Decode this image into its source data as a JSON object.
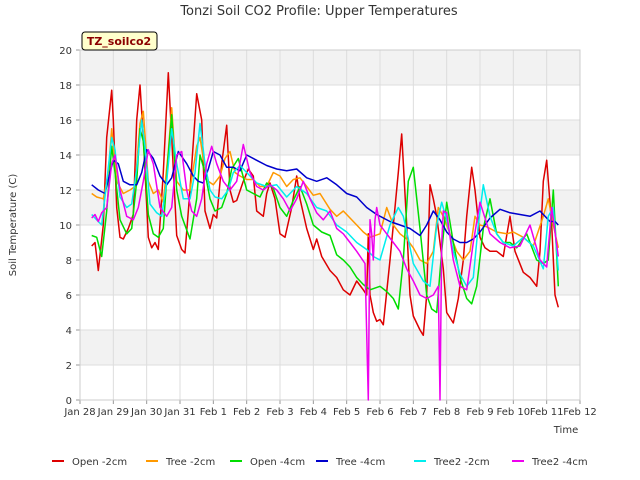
{
  "chart_data": {
    "type": "line",
    "title": "Tonzi Soil CO2 Profile: Upper Temperatures",
    "xlabel": "Time",
    "ylabel": "Soil Temperature (C)",
    "ylim": [
      0,
      20
    ],
    "yticks": [
      0,
      2,
      4,
      6,
      8,
      10,
      12,
      14,
      16,
      18,
      20
    ],
    "xlim": [
      0,
      15
    ],
    "xticks": [
      {
        "x": 0,
        "label": "Jan 28"
      },
      {
        "x": 1,
        "label": "Jan 29"
      },
      {
        "x": 2,
        "label": "Jan 30"
      },
      {
        "x": 3,
        "label": "Jan 31"
      },
      {
        "x": 4,
        "label": "Feb 1"
      },
      {
        "x": 5,
        "label": "Feb 2"
      },
      {
        "x": 6,
        "label": "Feb 3"
      },
      {
        "x": 7,
        "label": "Feb 4"
      },
      {
        "x": 8,
        "label": "Feb 5"
      },
      {
        "x": 9,
        "label": "Feb 6"
      },
      {
        "x": 10,
        "label": "Feb 7"
      },
      {
        "x": 11,
        "label": "Feb 8"
      },
      {
        "x": 12,
        "label": "Feb 9"
      },
      {
        "x": 13,
        "label": "Feb 10"
      },
      {
        "x": 14,
        "label": "Feb 11"
      },
      {
        "x": 15,
        "label": "Feb 12"
      }
    ],
    "grid": true,
    "site_label": "TZ_soilco2",
    "legend_position": "bottom",
    "series": [
      {
        "name": "Open -2cm",
        "color": "#dd0000",
        "x": [
          0.35,
          0.45,
          0.55,
          0.7,
          0.8,
          0.95,
          1.0,
          1.1,
          1.2,
          1.3,
          1.45,
          1.6,
          1.7,
          1.8,
          1.9,
          2.05,
          2.15,
          2.25,
          2.35,
          2.5,
          2.65,
          2.75,
          2.9,
          3.05,
          3.15,
          3.3,
          3.5,
          3.65,
          3.75,
          3.9,
          4.0,
          4.1,
          4.25,
          4.4,
          4.5,
          4.6,
          4.7,
          4.9,
          5.05,
          5.2,
          5.3,
          5.5,
          5.6,
          5.7,
          5.85,
          6.0,
          6.15,
          6.35,
          6.5,
          6.6,
          6.8,
          7.0,
          7.1,
          7.25,
          7.5,
          7.7,
          7.9,
          8.1,
          8.3,
          8.5,
          8.6,
          8.65,
          8.7,
          8.75,
          8.8,
          8.9,
          9.0,
          9.1,
          9.3,
          9.55,
          9.65,
          9.8,
          9.9,
          10.0,
          10.2,
          10.3,
          10.4,
          10.5,
          10.6,
          10.7,
          10.8,
          10.9,
          11.0,
          11.2,
          11.35,
          11.5,
          11.6,
          11.75,
          11.85,
          12.0,
          12.15,
          12.3,
          12.5,
          12.7,
          12.8,
          12.9,
          13.05,
          13.3,
          13.5,
          13.7,
          13.8,
          13.9,
          14.0,
          14.15,
          14.25,
          14.35
        ],
        "y": [
          8.8,
          9.0,
          7.4,
          10.0,
          15.0,
          17.7,
          16.0,
          11.0,
          9.3,
          9.2,
          9.8,
          10.6,
          16.0,
          18.0,
          15.0,
          9.3,
          8.7,
          9.0,
          8.6,
          13.0,
          18.7,
          15.0,
          9.4,
          8.6,
          8.4,
          12.0,
          17.5,
          16.0,
          10.8,
          9.8,
          10.6,
          10.4,
          13.5,
          15.7,
          12.0,
          11.3,
          11.4,
          12.5,
          13.2,
          12.8,
          10.8,
          10.5,
          11.8,
          12.4,
          11.5,
          9.5,
          9.3,
          11.0,
          12.8,
          11.5,
          9.8,
          8.6,
          9.2,
          8.2,
          7.4,
          7.0,
          6.3,
          6.0,
          6.8,
          6.3,
          6.0,
          9.5,
          6.0,
          5.5,
          5.0,
          4.5,
          4.6,
          4.3,
          8.0,
          13.0,
          15.2,
          10.0,
          6.0,
          4.8,
          4.0,
          3.7,
          6.0,
          12.3,
          11.5,
          10.5,
          9.0,
          7.5,
          5.0,
          4.4,
          5.8,
          8.0,
          10.5,
          13.3,
          12.0,
          9.3,
          8.7,
          8.5,
          8.5,
          8.2,
          9.4,
          10.5,
          8.5,
          7.3,
          7.0,
          6.5,
          8.5,
          12.5,
          13.7,
          10.0,
          6.0,
          5.3
        ]
      },
      {
        "name": "Tree -2cm",
        "color": "#ff9900",
        "x": [
          0.35,
          0.5,
          0.7,
          0.85,
          0.95,
          1.1,
          1.3,
          1.5,
          1.65,
          1.8,
          1.9,
          2.05,
          2.2,
          2.35,
          2.5,
          2.65,
          2.75,
          2.9,
          3.1,
          3.3,
          3.5,
          3.6,
          3.7,
          3.85,
          4.0,
          4.2,
          4.35,
          4.5,
          4.65,
          4.8,
          5.0,
          5.2,
          5.4,
          5.6,
          5.8,
          6.0,
          6.2,
          6.4,
          6.6,
          6.8,
          7.0,
          7.2,
          7.5,
          7.7,
          7.9,
          8.1,
          8.3,
          8.5,
          8.7,
          9.0,
          9.2,
          9.4,
          9.6,
          9.8,
          10.0,
          10.2,
          10.4,
          10.6,
          10.75,
          10.9,
          11.1,
          11.3,
          11.5,
          11.7,
          11.85,
          12.0,
          12.2,
          12.5,
          12.8,
          13.0,
          13.3,
          13.6,
          13.9,
          14.05,
          14.2,
          14.35
        ],
        "y": [
          11.8,
          11.6,
          11.5,
          13.0,
          15.5,
          12.5,
          11.8,
          12.0,
          12.2,
          15.8,
          16.5,
          12.5,
          11.8,
          12.0,
          11.3,
          14.2,
          16.7,
          12.5,
          12.0,
          12.0,
          14.5,
          15.0,
          13.8,
          12.5,
          12.3,
          12.8,
          13.8,
          14.2,
          13.0,
          12.8,
          12.6,
          12.6,
          12.2,
          12.2,
          13.0,
          12.8,
          12.2,
          12.6,
          12.7,
          12.2,
          11.7,
          11.8,
          10.9,
          10.5,
          10.8,
          10.4,
          10.0,
          9.6,
          9.3,
          9.5,
          11.0,
          10.0,
          9.5,
          9.2,
          8.7,
          8.0,
          7.8,
          8.5,
          11.0,
          10.5,
          9.5,
          8.5,
          8.0,
          8.5,
          10.5,
          10.0,
          9.9,
          9.6,
          9.5,
          9.6,
          9.3,
          8.8,
          10.5,
          11.5,
          10.0,
          8.7
        ]
      },
      {
        "name": "Open -4cm",
        "color": "#00dd00",
        "x": [
          0.35,
          0.5,
          0.65,
          0.8,
          0.95,
          1.05,
          1.2,
          1.4,
          1.55,
          1.7,
          1.8,
          1.9,
          2.05,
          2.2,
          2.35,
          2.5,
          2.65,
          2.75,
          2.9,
          3.05,
          3.3,
          3.5,
          3.6,
          3.75,
          3.9,
          4.05,
          4.25,
          4.4,
          4.55,
          4.75,
          5.0,
          5.2,
          5.4,
          5.6,
          5.8,
          6.0,
          6.2,
          6.4,
          6.6,
          6.8,
          7.0,
          7.25,
          7.5,
          7.7,
          7.9,
          8.1,
          8.3,
          8.5,
          8.7,
          9.0,
          9.2,
          9.4,
          9.55,
          9.7,
          9.85,
          10.0,
          10.2,
          10.4,
          10.55,
          10.7,
          10.85,
          11.0,
          11.2,
          11.4,
          11.6,
          11.75,
          11.9,
          12.1,
          12.3,
          12.5,
          12.7,
          12.9,
          13.1,
          13.4,
          13.7,
          13.9,
          14.05,
          14.2,
          14.35
        ],
        "y": [
          9.4,
          9.3,
          8.2,
          10.8,
          14.5,
          13.0,
          10.3,
          9.5,
          9.8,
          12.5,
          15.5,
          14.8,
          10.6,
          9.5,
          9.3,
          9.8,
          14.0,
          16.3,
          12.0,
          10.5,
          9.2,
          11.5,
          14.0,
          13.0,
          11.5,
          10.8,
          11.0,
          11.8,
          13.2,
          13.8,
          12.0,
          11.8,
          11.6,
          12.4,
          12.1,
          11.0,
          10.5,
          11.4,
          12.2,
          11.2,
          10.0,
          9.6,
          9.4,
          8.3,
          8.0,
          7.6,
          7.0,
          6.6,
          6.3,
          6.5,
          6.2,
          5.8,
          5.2,
          8.0,
          12.5,
          13.3,
          9.8,
          6.0,
          5.2,
          5.0,
          8.5,
          11.3,
          9.0,
          7.0,
          5.8,
          5.5,
          6.5,
          9.8,
          11.5,
          9.5,
          9.0,
          9.0,
          8.7,
          9.5,
          8.0,
          7.8,
          8.0,
          12.0,
          6.5
        ]
      },
      {
        "name": "Tree -4cm",
        "color": "#0000cc",
        "x": [
          0.35,
          0.55,
          0.75,
          0.9,
          1.0,
          1.15,
          1.3,
          1.5,
          1.7,
          1.85,
          2.0,
          2.2,
          2.4,
          2.6,
          2.75,
          2.95,
          3.2,
          3.4,
          3.55,
          3.7,
          3.85,
          4.0,
          4.2,
          4.4,
          4.6,
          4.8,
          5.0,
          5.3,
          5.6,
          5.9,
          6.2,
          6.5,
          6.8,
          7.1,
          7.4,
          7.7,
          8.0,
          8.3,
          8.6,
          8.9,
          9.1,
          9.3,
          9.6,
          9.9,
          10.2,
          10.4,
          10.6,
          10.8,
          11.0,
          11.2,
          11.4,
          11.6,
          11.8,
          12.0,
          12.3,
          12.6,
          12.9,
          13.2,
          13.5,
          13.8,
          14.1,
          14.25,
          14.35
        ],
        "y": [
          12.3,
          12.0,
          11.8,
          13.0,
          13.7,
          13.5,
          12.5,
          12.3,
          12.3,
          13.0,
          14.3,
          13.8,
          12.8,
          12.3,
          12.7,
          14.2,
          13.5,
          12.8,
          12.5,
          12.4,
          13.2,
          14.2,
          14.0,
          13.3,
          13.3,
          13.1,
          14.0,
          13.7,
          13.4,
          13.2,
          13.1,
          13.2,
          12.7,
          12.5,
          12.7,
          12.3,
          11.8,
          11.6,
          11.0,
          10.6,
          10.4,
          10.2,
          10.0,
          9.8,
          9.4,
          10.0,
          10.8,
          10.3,
          9.6,
          9.2,
          9.0,
          9.0,
          9.2,
          9.6,
          10.4,
          10.9,
          10.7,
          10.6,
          10.5,
          10.8,
          10.2,
          10.2,
          10.0
        ]
      },
      {
        "name": "Tree2 -2cm",
        "color": "#00eeee",
        "x": [
          0.35,
          0.5,
          0.65,
          0.8,
          0.95,
          1.05,
          1.2,
          1.4,
          1.55,
          1.7,
          1.85,
          1.95,
          2.1,
          2.3,
          2.45,
          2.6,
          2.75,
          2.9,
          3.1,
          3.3,
          3.45,
          3.6,
          3.75,
          3.9,
          4.05,
          4.25,
          4.45,
          4.6,
          4.8,
          5.0,
          5.3,
          5.6,
          5.9,
          6.2,
          6.5,
          6.8,
          7.1,
          7.4,
          7.7,
          8.0,
          8.3,
          8.6,
          8.8,
          9.0,
          9.3,
          9.55,
          9.7,
          9.85,
          10.0,
          10.3,
          10.5,
          10.7,
          10.85,
          11.0,
          11.2,
          11.4,
          11.6,
          11.8,
          11.95,
          12.1,
          12.3,
          12.5,
          12.7,
          13.0,
          13.3,
          13.6,
          13.9,
          14.05,
          14.2,
          14.35
        ],
        "y": [
          10.6,
          10.3,
          10.0,
          12.5,
          15.0,
          14.3,
          11.6,
          11.0,
          11.2,
          13.2,
          16.0,
          14.5,
          11.2,
          10.7,
          10.5,
          12.5,
          15.5,
          13.5,
          11.5,
          11.5,
          13.0,
          15.8,
          13.5,
          12.0,
          11.6,
          11.5,
          12.0,
          13.0,
          13.4,
          13.0,
          12.4,
          12.2,
          12.3,
          11.6,
          12.2,
          11.8,
          11.0,
          10.8,
          10.0,
          9.6,
          9.0,
          8.6,
          8.2,
          8.0,
          10.0,
          11.0,
          10.5,
          9.2,
          7.8,
          6.8,
          6.5,
          10.0,
          11.3,
          10.3,
          8.5,
          7.2,
          6.5,
          7.0,
          10.0,
          12.3,
          10.5,
          9.5,
          9.0,
          8.8,
          9.3,
          8.8,
          7.5,
          10.5,
          11.0,
          7.4
        ]
      },
      {
        "name": "Tree2 -4cm",
        "color": "#ee00ee",
        "x": [
          0.35,
          0.45,
          0.55,
          0.65,
          0.8,
          0.95,
          1.05,
          1.2,
          1.4,
          1.6,
          1.75,
          1.9,
          2.05,
          2.2,
          2.4,
          2.6,
          2.75,
          2.9,
          3.05,
          3.2,
          3.35,
          3.5,
          3.65,
          3.8,
          3.95,
          4.1,
          4.3,
          4.5,
          4.7,
          4.9,
          5.1,
          5.3,
          5.5,
          5.7,
          5.9,
          6.1,
          6.3,
          6.5,
          6.7,
          6.9,
          7.1,
          7.3,
          7.5,
          7.7,
          7.9,
          8.1,
          8.3,
          8.55,
          8.65,
          8.7,
          8.75,
          8.8,
          8.85,
          8.9,
          9.0,
          9.2,
          9.4,
          9.6,
          9.8,
          10.0,
          10.2,
          10.4,
          10.6,
          10.75,
          10.8,
          10.85,
          10.9,
          11.0,
          11.2,
          11.4,
          11.6,
          11.8,
          12.0,
          12.3,
          12.6,
          12.9,
          13.2,
          13.5,
          13.8,
          14.0,
          14.15,
          14.35
        ],
        "y": [
          10.4,
          10.6,
          10.2,
          10.7,
          11.0,
          13.5,
          14.0,
          12.0,
          10.5,
          10.3,
          11.0,
          12.5,
          14.3,
          13.5,
          11.0,
          10.5,
          11.0,
          14.0,
          14.2,
          12.0,
          10.8,
          10.5,
          11.5,
          13.5,
          14.5,
          13.5,
          12.5,
          12.0,
          12.5,
          14.6,
          13.0,
          12.2,
          12.0,
          12.3,
          12.0,
          11.5,
          10.8,
          11.5,
          12.5,
          11.5,
          10.7,
          10.3,
          10.8,
          9.8,
          9.5,
          9.0,
          8.5,
          7.8,
          0.0,
          10.3,
          9.5,
          8.0,
          10.3,
          11.0,
          10.0,
          9.5,
          9.0,
          8.5,
          7.5,
          6.8,
          6.0,
          5.8,
          6.0,
          6.5,
          0.0,
          9.0,
          10.8,
          10.7,
          8.0,
          6.5,
          6.3,
          9.0,
          11.3,
          9.5,
          9.0,
          8.7,
          8.8,
          10.0,
          8.0,
          7.6,
          11.0,
          8.2
        ]
      }
    ]
  }
}
